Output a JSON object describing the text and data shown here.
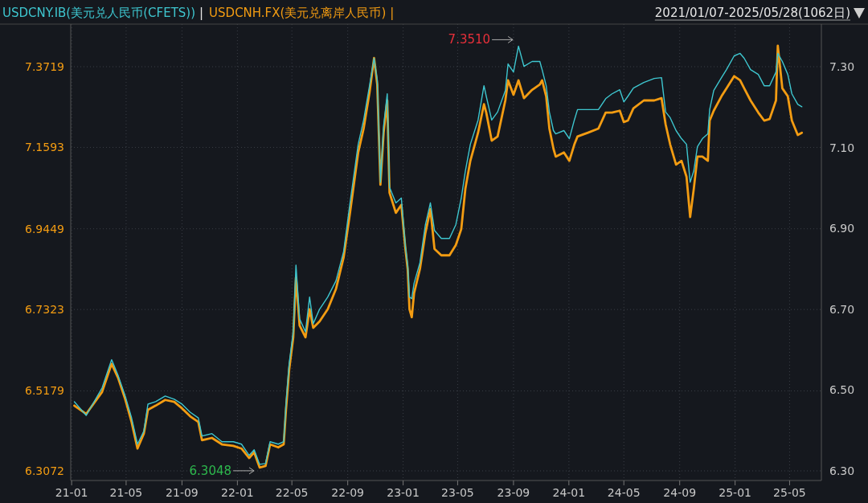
{
  "chart_data": {
    "type": "line",
    "subtitle": "2021/01/07-2025/05/28(1062日)",
    "legend": "top left",
    "grid": true,
    "x": [
      "2021-01-07",
      "2021-02-02",
      "2021-03-09",
      "2021-03-30",
      "2021-04-13",
      "2021-04-29",
      "2021-05-13",
      "2021-05-26",
      "2021-06-09",
      "2021-06-18",
      "2021-07-05",
      "2021-07-26",
      "2021-08-15",
      "2021-09-01",
      "2021-09-19",
      "2021-10-07",
      "2021-10-15",
      "2021-11-06",
      "2021-11-28",
      "2021-12-23",
      "2022-01-10",
      "2022-01-27",
      "2022-02-07",
      "2022-02-19",
      "2022-03-04",
      "2022-03-14",
      "2022-04-01",
      "2022-04-13",
      "2022-04-18",
      "2022-04-25",
      "2022-05-04",
      "2022-05-10",
      "2022-05-18",
      "2022-05-31",
      "2022-06-09",
      "2022-06-17",
      "2022-07-01",
      "2022-07-19",
      "2022-08-06",
      "2022-08-23",
      "2022-09-06",
      "2022-09-24",
      "2022-10-06",
      "2022-10-19",
      "2022-10-29",
      "2022-11-05",
      "2022-11-12",
      "2022-11-19",
      "2022-11-27",
      "2022-12-02",
      "2022-12-16",
      "2022-12-28",
      "2023-01-06",
      "2023-01-11",
      "2023-01-15",
      "2023-01-20",
      "2023-01-25",
      "2023-02-07",
      "2023-02-19",
      "2023-03-02",
      "2023-03-11",
      "2023-03-26",
      "2023-04-13",
      "2023-04-27",
      "2023-05-09",
      "2023-05-18",
      "2023-05-29",
      "2023-06-15",
      "2023-06-28",
      "2023-07-03",
      "2023-07-15",
      "2023-07-28",
      "2023-08-14",
      "2023-08-20",
      "2023-09-01",
      "2023-09-12",
      "2023-09-24",
      "2023-10-12",
      "2023-10-29",
      "2023-11-03",
      "2023-11-12",
      "2023-11-19",
      "2023-11-28",
      "2023-12-03",
      "2023-12-21",
      "2024-01-02",
      "2024-01-13",
      "2024-01-20",
      "2024-02-12",
      "2024-03-06",
      "2024-03-22",
      "2024-04-05",
      "2024-04-22",
      "2024-05-01",
      "2024-05-10",
      "2024-05-22",
      "2024-06-14",
      "2024-07-07",
      "2024-07-23",
      "2024-08-01",
      "2024-08-11",
      "2024-08-24",
      "2024-09-05",
      "2024-09-16",
      "2024-09-24",
      "2024-10-02",
      "2024-10-10",
      "2024-10-21",
      "2024-11-02",
      "2024-11-06",
      "2024-11-15",
      "2024-12-02",
      "2024-12-13",
      "2024-12-30",
      "2025-01-12",
      "2025-01-21",
      "2025-02-04",
      "2025-02-21",
      "2025-03-06",
      "2025-03-18",
      "2025-04-01",
      "2025-04-05",
      "2025-04-15",
      "2025-04-27",
      "2025-05-06",
      "2025-05-19",
      "2025-05-28"
    ],
    "series": [
      {
        "name": "USDCNY.IB(美元兑人民币(CFETS))",
        "color": "#3ec6cf",
        "axis": "y2",
        "values": [
          6.471,
          6.437,
          6.505,
          6.575,
          6.537,
          6.485,
          6.431,
          6.366,
          6.398,
          6.465,
          6.471,
          6.485,
          6.477,
          6.465,
          6.445,
          6.431,
          6.386,
          6.392,
          6.372,
          6.372,
          6.366,
          6.338,
          6.352,
          6.316,
          6.318,
          6.372,
          6.366,
          6.372,
          6.465,
          6.565,
          6.644,
          6.809,
          6.676,
          6.644,
          6.73,
          6.664,
          6.7,
          6.73,
          6.77,
          6.843,
          6.963,
          7.108,
          7.168,
          7.253,
          7.321,
          7.267,
          7.014,
          7.154,
          7.233,
          7.002,
          6.963,
          6.975,
          6.855,
          6.809,
          6.73,
          6.726,
          6.764,
          6.815,
          6.909,
          6.963,
          6.895,
          6.875,
          6.875,
          6.909,
          6.975,
          7.042,
          7.108,
          7.168,
          7.253,
          7.227,
          7.168,
          7.188,
          7.241,
          7.307,
          7.287,
          7.351,
          7.301,
          7.313,
          7.313,
          7.293,
          7.253,
          7.188,
          7.142,
          7.134,
          7.142,
          7.122,
          7.168,
          7.194,
          7.194,
          7.194,
          7.221,
          7.233,
          7.243,
          7.213,
          7.227,
          7.247,
          7.261,
          7.271,
          7.273,
          7.188,
          7.174,
          7.142,
          7.122,
          7.108,
          7.014,
          7.042,
          7.102,
          7.122,
          7.134,
          7.194,
          7.241,
          7.273,
          7.293,
          7.327,
          7.333,
          7.321,
          7.293,
          7.281,
          7.253,
          7.253,
          7.287,
          7.333,
          7.313,
          7.281,
          7.233,
          7.207,
          7.201
        ]
      },
      {
        "name": "USDCNH.FX(美元兑离岸人民币)",
        "color": "#f39c12",
        "values": [
          6.479,
          6.457,
          6.515,
          6.589,
          6.553,
          6.496,
          6.436,
          6.366,
          6.405,
          6.468,
          6.479,
          6.494,
          6.489,
          6.472,
          6.451,
          6.436,
          6.388,
          6.394,
          6.377,
          6.373,
          6.366,
          6.341,
          6.356,
          6.316,
          6.32,
          6.377,
          6.369,
          6.377,
          6.468,
          6.574,
          6.659,
          6.817,
          6.69,
          6.659,
          6.733,
          6.684,
          6.701,
          6.733,
          6.786,
          6.87,
          6.987,
          7.146,
          7.209,
          7.304,
          7.395,
          7.325,
          7.061,
          7.198,
          7.283,
          7.04,
          6.987,
          7.008,
          6.892,
          6.839,
          6.733,
          6.712,
          6.775,
          6.839,
          6.934,
          6.997,
          6.892,
          6.875,
          6.875,
          6.902,
          6.944,
          7.05,
          7.124,
          7.198,
          7.273,
          7.251,
          7.177,
          7.188,
          7.283,
          7.336,
          7.298,
          7.336,
          7.289,
          7.311,
          7.325,
          7.336,
          7.294,
          7.209,
          7.156,
          7.135,
          7.146,
          7.124,
          7.167,
          7.188,
          7.198,
          7.209,
          7.251,
          7.251,
          7.256,
          7.226,
          7.23,
          7.262,
          7.283,
          7.283,
          7.289,
          7.22,
          7.167,
          7.114,
          7.124,
          7.082,
          6.976,
          7.05,
          7.135,
          7.135,
          7.124,
          7.23,
          7.256,
          7.294,
          7.315,
          7.347,
          7.336,
          7.315,
          7.283,
          7.251,
          7.23,
          7.234,
          7.283,
          7.427,
          7.315,
          7.294,
          7.23,
          7.192,
          7.198
        ]
      }
    ],
    "xlim": [
      "2020-12-30",
      "2025-07-10"
    ],
    "xticks": [
      {
        "value": "2021-01-01",
        "label": "21-01"
      },
      {
        "value": "2021-05-01",
        "label": "21-05"
      },
      {
        "value": "2021-09-01",
        "label": "21-09"
      },
      {
        "value": "2022-01-01",
        "label": "22-01"
      },
      {
        "value": "2022-05-01",
        "label": "22-05"
      },
      {
        "value": "2022-09-01",
        "label": "22-09"
      },
      {
        "value": "2023-01-01",
        "label": "23-01"
      },
      {
        "value": "2023-05-01",
        "label": "23-05"
      },
      {
        "value": "2023-09-01",
        "label": "23-09"
      },
      {
        "value": "2024-01-01",
        "label": "24-01"
      },
      {
        "value": "2024-05-01",
        "label": "24-05"
      },
      {
        "value": "2024-09-01",
        "label": "24-09"
      },
      {
        "value": "2025-01-01",
        "label": "25-01"
      },
      {
        "value": "2025-05-01",
        "label": "25-05"
      }
    ],
    "ylim": [
      6.2818,
      7.4841
    ],
    "yticks": [
      6.3072,
      6.5179,
      6.7323,
      6.9449,
      7.1593,
      7.3719
    ],
    "y2lim": [
      6.276,
      7.4055
    ],
    "y2ticks": [
      {
        "value": 6.3,
        "label": "6.30"
      },
      {
        "value": 6.5,
        "label": "6.50"
      },
      {
        "value": 6.7,
        "label": "6.70"
      },
      {
        "value": 6.9,
        "label": "6.90"
      },
      {
        "value": 7.1,
        "label": "7.10"
      },
      {
        "value": 7.3,
        "label": "7.30"
      }
    ],
    "annotations": [
      "7.3510",
      "6.3048",
      "|",
      "|"
    ]
  }
}
